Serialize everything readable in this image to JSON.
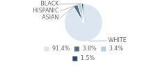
{
  "chart_data": {
    "type": "pie",
    "categories": [
      "WHITE",
      "ASIAN",
      "HISPANIC",
      "BLACK"
    ],
    "values": [
      91.4,
      3.8,
      3.4,
      1.5
    ],
    "value_labels": [
      "91.4%",
      "3.8%",
      "3.4%",
      "1.5%"
    ],
    "colors": [
      "#dce6f1",
      "#4f6d8b",
      "#b8ccd9",
      "#2c4a63"
    ],
    "legend": "bottom"
  }
}
